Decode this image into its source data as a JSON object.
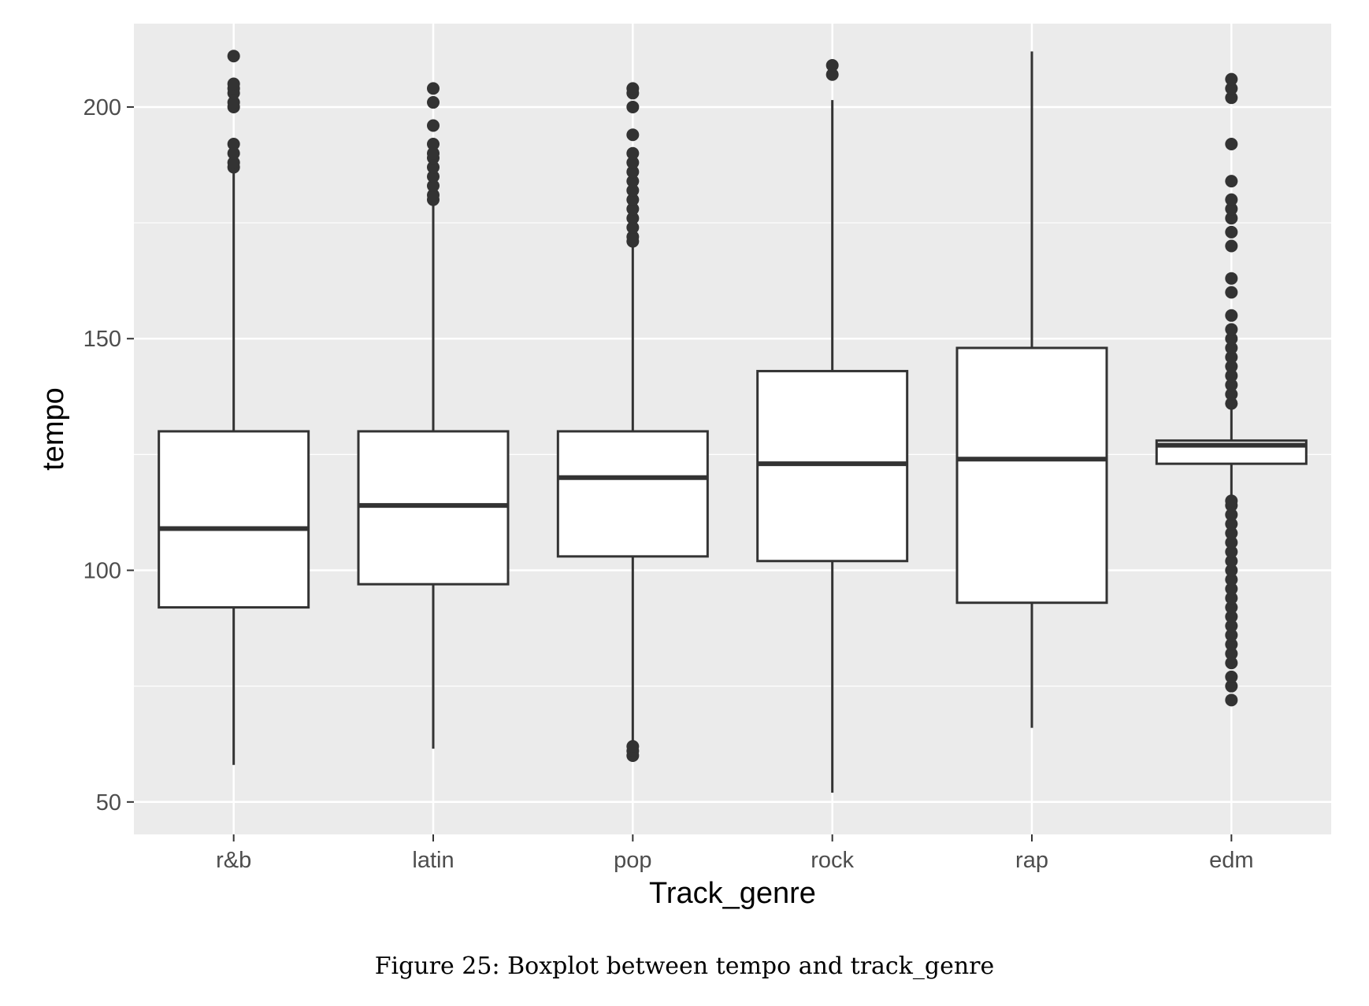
{
  "chart_data": {
    "type": "boxplot",
    "xlabel": "Track_genre",
    "ylabel": "tempo",
    "ylim": [
      43,
      218
    ],
    "yticks": [
      50,
      100,
      150,
      200
    ],
    "grid": true,
    "legend": "none",
    "categories": [
      "r&b",
      "latin",
      "pop",
      "rock",
      "rap",
      "edm"
    ],
    "boxes": [
      {
        "category": "r&b",
        "whisker_low": 58,
        "q1": 92,
        "median": 109,
        "q3": 130,
        "whisker_high": 186,
        "outliers": [
          187,
          188,
          190,
          192,
          200,
          201,
          203,
          204,
          205,
          211
        ]
      },
      {
        "category": "latin",
        "whisker_low": 61.5,
        "q1": 97,
        "median": 114,
        "q3": 130,
        "whisker_high": 179,
        "outliers": [
          180,
          181,
          183,
          185,
          187,
          189,
          190,
          192,
          196,
          201,
          204
        ]
      },
      {
        "category": "pop",
        "whisker_low": 62.5,
        "q1": 103,
        "median": 120,
        "q3": 130,
        "whisker_high": 170.5,
        "outliers": [
          60,
          61,
          62,
          171,
          172,
          174,
          176,
          178,
          180,
          182,
          184,
          186,
          188,
          190,
          194,
          200,
          203,
          204
        ]
      },
      {
        "category": "rock",
        "whisker_low": 52,
        "q1": 102,
        "median": 123,
        "q3": 143,
        "whisker_high": 201.5,
        "outliers": [
          207,
          209
        ]
      },
      {
        "category": "rap",
        "whisker_low": 66,
        "q1": 93,
        "median": 124,
        "q3": 148,
        "whisker_high": 212,
        "outliers": []
      },
      {
        "category": "edm",
        "whisker_low": 116,
        "q1": 123,
        "median": 127,
        "q3": 128,
        "whisker_high": 135,
        "outliers": [
          72,
          75,
          77,
          80,
          82,
          84,
          86,
          88,
          90,
          92,
          94,
          96,
          98,
          100,
          102,
          104,
          106,
          108,
          110,
          112,
          114,
          115,
          136,
          138,
          140,
          142,
          144,
          146,
          148,
          150,
          152,
          155,
          160,
          163,
          170,
          173,
          176,
          178,
          180,
          184,
          192,
          202,
          204,
          206
        ]
      }
    ]
  },
  "caption": "Figure 25: Boxplot between tempo and track_genre",
  "colors": {
    "panel_bg": "#ebebeb",
    "grid": "#ffffff",
    "box_fill": "#ffffff",
    "box_stroke": "#333333",
    "tick_text": "#4d4d4d"
  }
}
